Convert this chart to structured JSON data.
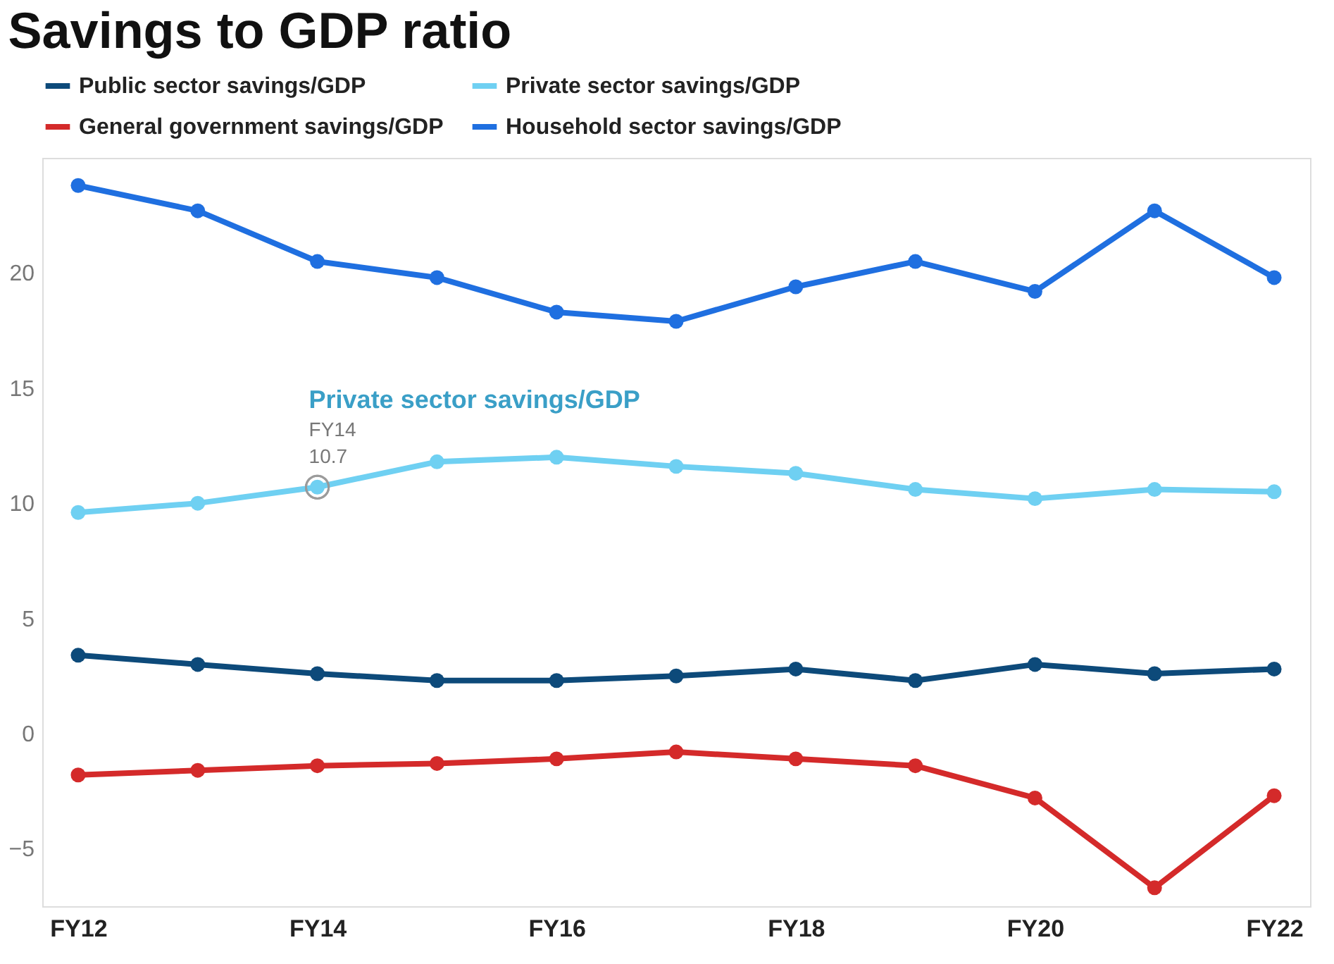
{
  "chart_data": {
    "type": "line",
    "title": "Savings to GDP ratio",
    "categories": [
      "FY12",
      null,
      "FY14",
      null,
      "FY16",
      null,
      "FY18",
      null,
      "FY20",
      null,
      "FY22"
    ],
    "series": [
      {
        "name": "Public sector savings/GDP",
        "color": "#0d4a7a",
        "values": [
          3.4,
          3.0,
          2.6,
          2.3,
          2.3,
          2.5,
          2.8,
          2.3,
          3.0,
          2.6,
          2.8
        ]
      },
      {
        "name": "Private sector savings/GDP",
        "color": "#6fd0f2",
        "values": [
          9.6,
          10.0,
          10.7,
          11.8,
          12.0,
          11.6,
          11.3,
          10.6,
          10.2,
          10.6,
          10.5
        ]
      },
      {
        "name": "General government savings/GDP",
        "color": "#d42a2a",
        "values": [
          -1.8,
          -1.6,
          -1.4,
          -1.3,
          -1.1,
          -0.8,
          -1.1,
          -1.4,
          -2.8,
          -6.7,
          -2.7
        ]
      },
      {
        "name": "Household sector savings/GDP",
        "color": "#1f6fe0",
        "values": [
          23.8,
          22.7,
          20.5,
          19.8,
          18.3,
          17.9,
          19.4,
          20.5,
          19.2,
          22.7,
          19.8
        ]
      }
    ],
    "annotations": [
      "Private sector savings/GDP",
      {
        "text": "FY14",
        "x": "FY14",
        "y": 10.7
      },
      {
        "text": "10.7",
        "x": "FY14",
        "y": 10.7
      }
    ],
    "ylim": [
      -7.5,
      25
    ],
    "yticks": [
      -5,
      0,
      5,
      10,
      15,
      20
    ],
    "grid": false,
    "legend": "top left",
    "marker": "circle",
    "line_style": "solid"
  }
}
